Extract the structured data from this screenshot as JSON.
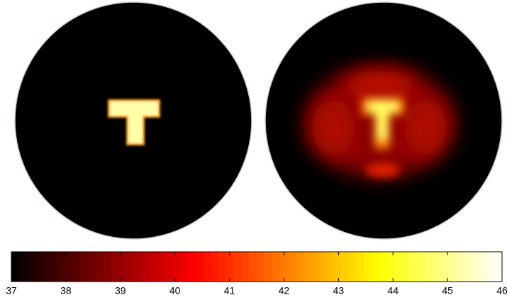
{
  "chart_data": {
    "type": "colorbar",
    "colormap": "hot",
    "xlim": [
      37,
      46
    ],
    "xticks": [
      37,
      38,
      39,
      40,
      41,
      42,
      43,
      44,
      45,
      46
    ]
  }
}
